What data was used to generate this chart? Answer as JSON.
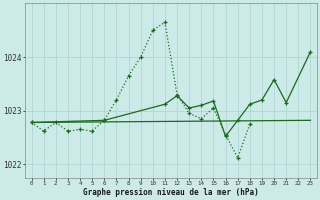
{
  "xlabel": "Graphe pression niveau de la mer (hPa)",
  "x_ticks": [
    0,
    1,
    2,
    3,
    4,
    5,
    6,
    7,
    8,
    9,
    10,
    11,
    12,
    13,
    14,
    15,
    16,
    17,
    18,
    19,
    20,
    21,
    22,
    23
  ],
  "ylim": [
    1021.75,
    1025.0
  ],
  "yticks": [
    1022,
    1023,
    1024
  ],
  "bg_color": "#cceae8",
  "grid_color": "#aad4d2",
  "line_color": "#1a6b1a",
  "line_dotted": {
    "x": [
      0,
      1,
      2,
      3,
      4,
      5,
      6,
      7,
      8,
      9,
      10,
      11,
      12,
      13,
      14,
      15,
      16,
      17,
      18
    ],
    "y": [
      1022.78,
      1022.62,
      1022.78,
      1022.62,
      1022.65,
      1022.62,
      1022.82,
      1023.2,
      1023.65,
      1024.0,
      1024.5,
      1024.65,
      1023.3,
      1022.95,
      1022.85,
      1023.05,
      1022.55,
      1022.12,
      1022.75
    ]
  },
  "line_solid": {
    "x": [
      0,
      6,
      11,
      12,
      13,
      14,
      15,
      16,
      17,
      18,
      19,
      20,
      21,
      23
    ],
    "y": [
      1022.78,
      1022.82,
      1023.12,
      1023.28,
      1023.05,
      1023.1,
      1023.18,
      1022.52,
      1022.82,
      1023.12,
      1023.2,
      1023.58,
      1023.15,
      1024.1
    ]
  },
  "line_flat": {
    "x": [
      0,
      23
    ],
    "y": [
      1022.78,
      1022.82
    ]
  }
}
